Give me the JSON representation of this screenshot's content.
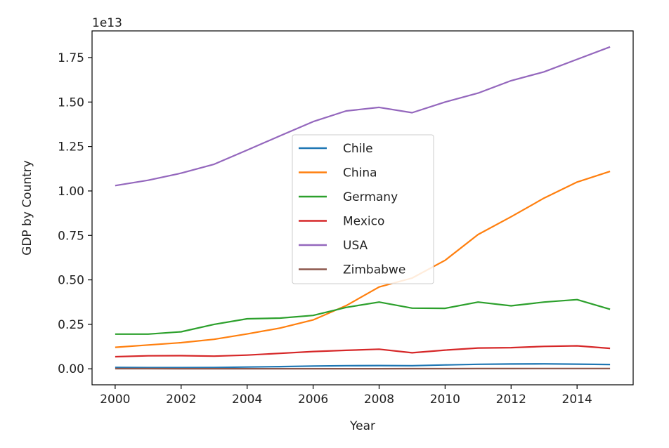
{
  "chart_data": {
    "type": "line",
    "title": "",
    "xlabel": "Year",
    "ylabel": "GDP by Country",
    "offset_label": "1e13",
    "x": [
      2000,
      2001,
      2002,
      2003,
      2004,
      2005,
      2006,
      2007,
      2008,
      2009,
      2010,
      2011,
      2012,
      2013,
      2014,
      2015
    ],
    "xlim": [
      1999.3,
      2015.7
    ],
    "ylim": [
      -0.09,
      1.9
    ],
    "x_ticks": [
      2000,
      2002,
      2004,
      2006,
      2008,
      2010,
      2012,
      2014
    ],
    "y_ticks": [
      0.0,
      0.25,
      0.5,
      0.75,
      1.0,
      1.25,
      1.5,
      1.75
    ],
    "x_tick_labels": [
      "2000",
      "2002",
      "2004",
      "2006",
      "2008",
      "2010",
      "2012",
      "2014"
    ],
    "y_tick_labels": [
      "0.00",
      "0.25",
      "0.50",
      "0.75",
      "1.00",
      "1.25",
      "1.50",
      "1.75"
    ],
    "grid": false,
    "legend_position": "center",
    "series": [
      {
        "name": "Chile",
        "color": "#1f77b4",
        "values": [
          0.0078,
          0.0069,
          0.0069,
          0.0076,
          0.0099,
          0.0123,
          0.0155,
          0.0173,
          0.018,
          0.0172,
          0.0218,
          0.0252,
          0.0267,
          0.0278,
          0.026,
          0.0243
        ]
      },
      {
        "name": "China",
        "color": "#ff7f0e",
        "values": [
          0.121,
          0.134,
          0.147,
          0.166,
          0.196,
          0.229,
          0.275,
          0.355,
          0.46,
          0.51,
          0.61,
          0.755,
          0.855,
          0.96,
          1.05,
          1.11
        ]
      },
      {
        "name": "Germany",
        "color": "#2ca02c",
        "values": [
          0.195,
          0.195,
          0.208,
          0.25,
          0.281,
          0.285,
          0.3,
          0.345,
          0.375,
          0.341,
          0.34,
          0.375,
          0.354,
          0.375,
          0.389,
          0.335
        ]
      },
      {
        "name": "Mexico",
        "color": "#d62728",
        "values": [
          0.068,
          0.073,
          0.074,
          0.071,
          0.077,
          0.087,
          0.097,
          0.104,
          0.11,
          0.09,
          0.105,
          0.117,
          0.119,
          0.126,
          0.129,
          0.115
        ]
      },
      {
        "name": "USA",
        "color": "#9467bd",
        "values": [
          1.03,
          1.06,
          1.1,
          1.15,
          1.23,
          1.31,
          1.39,
          1.45,
          1.47,
          1.44,
          1.5,
          1.55,
          1.62,
          1.67,
          1.74,
          1.81
        ]
      },
      {
        "name": "Zimbabwe",
        "color": "#8c564b",
        "values": [
          0.0007,
          0.0007,
          0.0006,
          0.0006,
          0.0006,
          0.0006,
          0.0005,
          0.0005,
          0.0004,
          0.0009,
          0.001,
          0.0012,
          0.0014,
          0.0015,
          0.0016,
          0.0016
        ]
      }
    ]
  }
}
